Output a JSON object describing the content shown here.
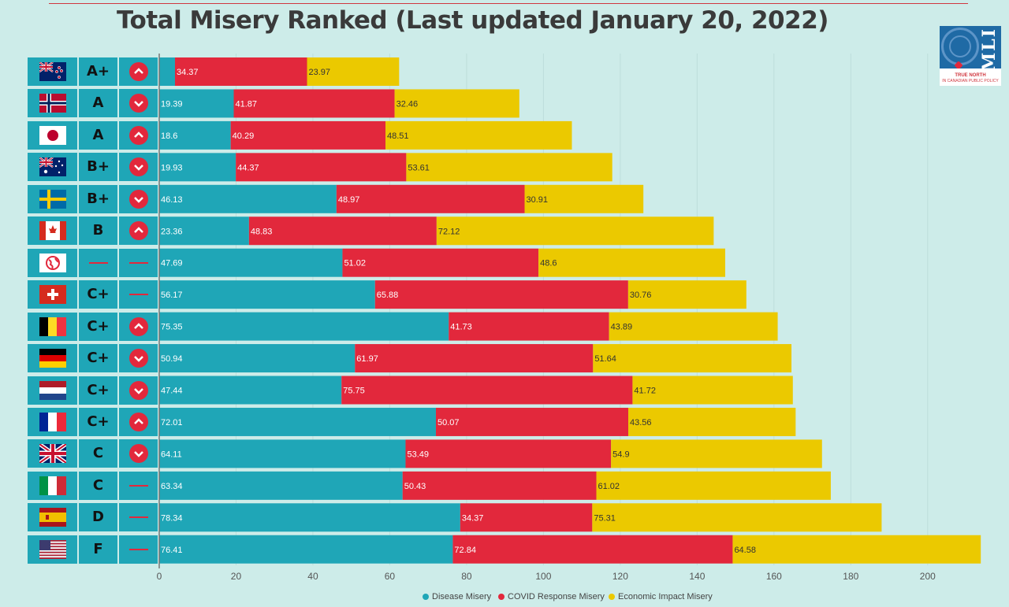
{
  "title": "Total Misery Ranked (Last updated January 20, 2022)",
  "logo": {
    "letters": "MLI",
    "tagline1": "TRUE NORTH",
    "tagline2": "IN CANADIAN PUBLIC POLICY"
  },
  "colors": {
    "disease": "#1fa6b7",
    "covid": "#e2283c",
    "economic": "#ebc900"
  },
  "legend": [
    "Disease Misery",
    "COVID Response Misery",
    "Economic Impact Misery"
  ],
  "x_ticks": [
    "0",
    "20",
    "40",
    "60",
    "80",
    "100",
    "120",
    "140",
    "160",
    "180",
    "200"
  ],
  "rows": [
    {
      "flag": "new-zealand",
      "grade": "A+",
      "trend": "up"
    },
    {
      "flag": "norway",
      "grade": "A",
      "trend": "down"
    },
    {
      "flag": "japan",
      "grade": "A",
      "trend": "up"
    },
    {
      "flag": "australia",
      "grade": "B+",
      "trend": "down"
    },
    {
      "flag": "sweden",
      "grade": "B+",
      "trend": "down"
    },
    {
      "flag": "canada",
      "grade": "B",
      "trend": "up"
    },
    {
      "flag": "world",
      "grade": "—",
      "trend": "none"
    },
    {
      "flag": "switzerland",
      "grade": "C+",
      "trend": "none"
    },
    {
      "flag": "belgium",
      "grade": "C+",
      "trend": "up"
    },
    {
      "flag": "germany",
      "grade": "C+",
      "trend": "down"
    },
    {
      "flag": "netherlands",
      "grade": "C+",
      "trend": "down"
    },
    {
      "flag": "france",
      "grade": "C+",
      "trend": "up"
    },
    {
      "flag": "united-kingdom",
      "grade": "C",
      "trend": "down"
    },
    {
      "flag": "italy",
      "grade": "C",
      "trend": "none"
    },
    {
      "flag": "spain",
      "grade": "D",
      "trend": "none"
    },
    {
      "flag": "united-states",
      "grade": "F",
      "trend": "none"
    }
  ],
  "chart_data": {
    "type": "bar",
    "orientation": "horizontal",
    "stacked": true,
    "title": "Total Misery Ranked (Last updated January 20, 2022)",
    "xlim": [
      0,
      216
    ],
    "grid": true,
    "legend_position": "bottom",
    "series": [
      {
        "name": "Disease Misery",
        "values": [
          4.1,
          19.39,
          18.6,
          19.93,
          46.13,
          23.36,
          47.69,
          56.17,
          75.35,
          50.94,
          47.44,
          72.01,
          64.11,
          63.34,
          78.34,
          76.41
        ]
      },
      {
        "name": "COVID Response Misery",
        "values": [
          34.37,
          41.87,
          40.29,
          44.37,
          48.97,
          48.83,
          51.02,
          65.88,
          41.73,
          61.97,
          75.75,
          50.07,
          53.49,
          50.43,
          34.37,
          72.84
        ]
      },
      {
        "name": "Economic Impact Misery",
        "values": [
          23.97,
          32.46,
          48.51,
          53.61,
          30.91,
          72.12,
          48.6,
          30.76,
          43.89,
          51.64,
          41.72,
          43.56,
          54.9,
          61.02,
          75.31,
          64.58
        ]
      }
    ],
    "data_labels": [
      [
        "",
        "34.37",
        "23.97"
      ],
      [
        "19.39",
        "41.87",
        "32.46"
      ],
      [
        "18.6",
        "40.29",
        "48.51"
      ],
      [
        "19.93",
        "44.37",
        "53.61"
      ],
      [
        "46.13",
        "48.97",
        "30.91"
      ],
      [
        "23.36",
        "48.83",
        "72.12"
      ],
      [
        "47.69",
        "51.02",
        "48.6"
      ],
      [
        "56.17",
        "65.88",
        "30.76"
      ],
      [
        "75.35",
        "41.73",
        "43.89"
      ],
      [
        "50.94",
        "61.97",
        "51.64"
      ],
      [
        "47.44",
        "75.75",
        "41.72"
      ],
      [
        "72.01",
        "50.07",
        "43.56"
      ],
      [
        "64.11",
        "53.49",
        "54.9"
      ],
      [
        "63.34",
        "50.43",
        "61.02"
      ],
      [
        "78.34",
        "34.37",
        "75.31"
      ],
      [
        "76.41",
        "72.84",
        "64.58"
      ]
    ]
  }
}
